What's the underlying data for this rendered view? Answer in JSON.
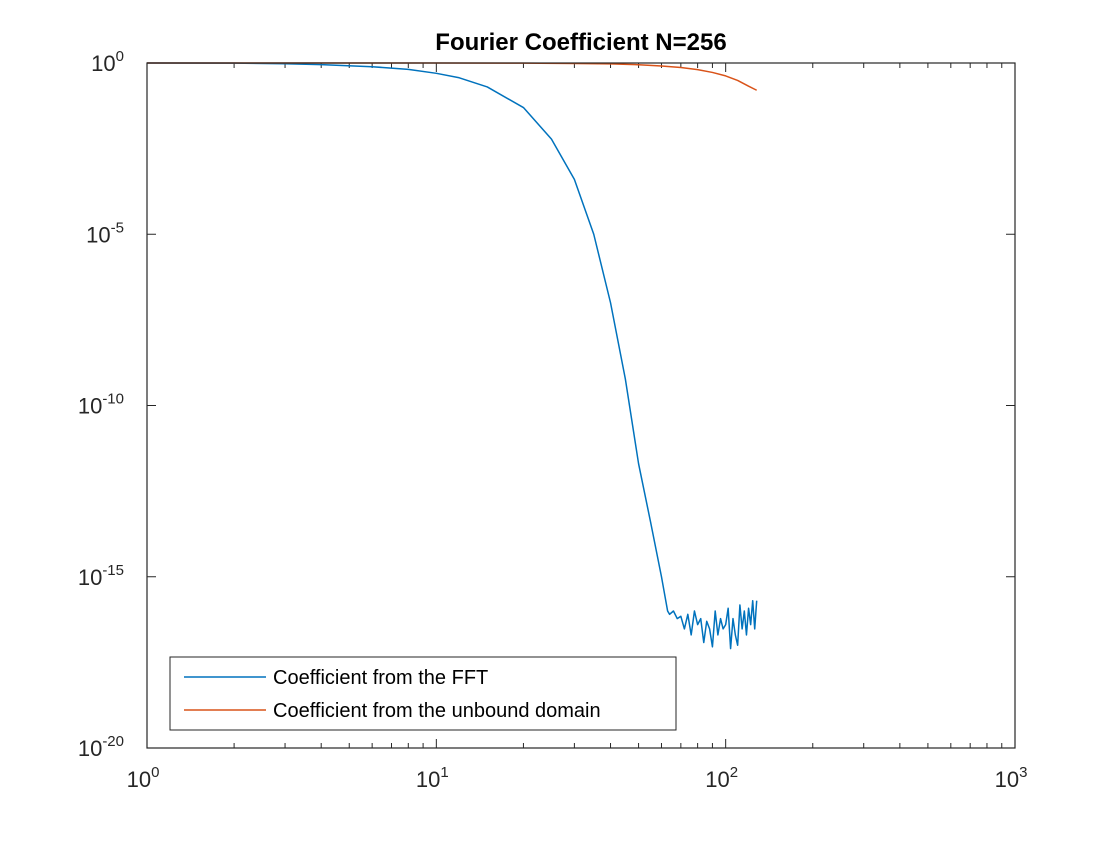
{
  "chart_data": {
    "type": "line",
    "title": "Fourier Coefficient N=256",
    "xlabel": "",
    "ylabel": "",
    "x_scale": "log",
    "y_scale": "log",
    "xlim": [
      1,
      1000
    ],
    "ylim": [
      1e-20,
      1
    ],
    "x_ticks": [
      {
        "base": "10",
        "exp": "0",
        "value": 1
      },
      {
        "base": "10",
        "exp": "1",
        "value": 10
      },
      {
        "base": "10",
        "exp": "2",
        "value": 100
      },
      {
        "base": "10",
        "exp": "3",
        "value": 1000
      }
    ],
    "y_ticks": [
      {
        "base": "10",
        "exp": "0",
        "value": 1
      },
      {
        "base": "10",
        "exp": "-5",
        "value": 1e-05
      },
      {
        "base": "10",
        "exp": "-10",
        "value": 1e-10
      },
      {
        "base": "10",
        "exp": "-15",
        "value": 1e-15
      },
      {
        "base": "10",
        "exp": "-20",
        "value": 1e-20
      }
    ],
    "grid": false,
    "legend_position": "bottom-left",
    "series": [
      {
        "name": "Coefficient from the FFT",
        "color": "#0072BD",
        "x": [
          1,
          2,
          3,
          4,
          6,
          8,
          10,
          12,
          15,
          20,
          25,
          30,
          35,
          40,
          45,
          50,
          55,
          60,
          63,
          64,
          66,
          68,
          70,
          72,
          74,
          76,
          78,
          80,
          82,
          84,
          86,
          88,
          90,
          92,
          94,
          96,
          98,
          100,
          102,
          104,
          106,
          108,
          110,
          112,
          114,
          116,
          118,
          120,
          122,
          124,
          126,
          128
        ],
        "y": [
          1,
          0.99,
          0.95,
          0.9,
          0.78,
          0.65,
          0.5,
          0.37,
          0.2,
          0.05,
          0.006,
          0.0004,
          1e-05,
          1e-07,
          6e-10,
          2e-12,
          4e-14,
          1e-15,
          1e-16,
          8e-17,
          1e-16,
          6e-17,
          7e-17,
          3e-17,
          8e-17,
          2e-17,
          1e-16,
          4e-17,
          6e-17,
          1.2e-17,
          5e-17,
          3e-17,
          9e-18,
          1e-16,
          2e-17,
          6e-17,
          3e-17,
          4e-17,
          1.2e-16,
          8e-18,
          6e-17,
          2e-17,
          1e-17,
          1.5e-16,
          3e-17,
          1e-16,
          2e-17,
          1.2e-16,
          4e-17,
          2e-16,
          3e-17,
          2e-16
        ]
      },
      {
        "name": "Coefficient from the unbound domain",
        "color": "#D95319",
        "x": [
          1,
          2,
          5,
          10,
          20,
          30,
          40,
          50,
          60,
          70,
          80,
          90,
          100,
          110,
          120,
          128
        ],
        "y": [
          1,
          1,
          1,
          1,
          0.99,
          0.97,
          0.94,
          0.89,
          0.82,
          0.74,
          0.64,
          0.53,
          0.42,
          0.31,
          0.21,
          0.16
        ]
      }
    ]
  }
}
